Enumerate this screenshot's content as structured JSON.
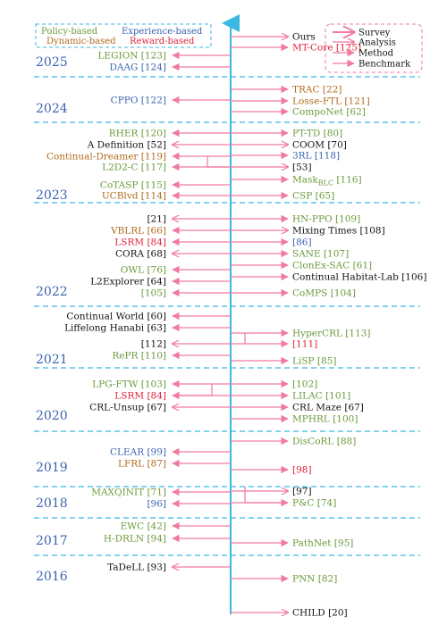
{
  "colors": {
    "policy": "#6b9a3a",
    "experience": "#3b64b0",
    "dynamic": "#b06a1c",
    "reward": "#e0223a",
    "default": "#111111",
    "arrow": "#f07aa0",
    "axis": "#3ab8e0",
    "dashed": "#3ab8e0"
  },
  "legend_categories": {
    "policy": "Policy-based",
    "experience": "Experience-based",
    "dynamic": "Dynamic-based",
    "reward": "Reward-based"
  },
  "legend_types": {
    "survey": "Survey",
    "analysis": "Analysis",
    "method": "Method",
    "benchmark": "Benchmark"
  },
  "years": [
    "2025",
    "2024",
    "2023",
    "2022",
    "2021",
    "2020",
    "2019",
    "2018",
    "2017",
    "2016"
  ],
  "entries": [
    {
      "label": "Ours",
      "cat": "default",
      "side": "right",
      "type": "survey"
    },
    {
      "label": "MT-Core [125]",
      "cat": "reward",
      "side": "right",
      "type": "method"
    },
    {
      "label": "LEGION [123]",
      "cat": "policy",
      "side": "left",
      "type": "method"
    },
    {
      "label": "DAAG [124]",
      "cat": "experience",
      "side": "left",
      "type": "method"
    },
    {
      "label": "TRAC [22]",
      "cat": "dynamic",
      "side": "right",
      "type": "method"
    },
    {
      "label": "CPPO [122]",
      "cat": "experience",
      "side": "left",
      "type": "method"
    },
    {
      "label": "Losse-FTL [121]",
      "cat": "dynamic",
      "side": "right",
      "type": "method"
    },
    {
      "label": "CompoNet [62]",
      "cat": "policy",
      "side": "right",
      "type": "method"
    },
    {
      "label": "RHER [120]",
      "cat": "policy",
      "side": "left",
      "type": "method"
    },
    {
      "label": "PT-TD [80]",
      "cat": "policy",
      "side": "right",
      "type": "method"
    },
    {
      "label": "A Definition [52]",
      "cat": "default",
      "side": "left",
      "type": "analysis"
    },
    {
      "label": "COOM [70]",
      "cat": "default",
      "side": "right",
      "type": "analysis"
    },
    {
      "label": "Continual-Dreamer [119]",
      "cat": "dynamic",
      "side": "left",
      "type": "method"
    },
    {
      "label": "3RL [118]",
      "cat": "experience",
      "side": "right",
      "type": "method"
    },
    {
      "label": "L2D2-C [117]",
      "cat": "policy",
      "side": "left",
      "type": "method"
    },
    {
      "label": "[53]",
      "cat": "default",
      "side": "right",
      "type": "analysis"
    },
    {
      "label": "Mask",
      "sub": "BLC",
      "tail": " [116]",
      "cat": "policy",
      "side": "right",
      "type": "method"
    },
    {
      "label": "CoTASP [115]",
      "cat": "policy",
      "side": "left",
      "type": "method"
    },
    {
      "label": "UCBlvd [114]",
      "cat": "dynamic",
      "side": "left",
      "type": "method"
    },
    {
      "label": "CSP [65]",
      "cat": "policy",
      "side": "right",
      "type": "method"
    },
    {
      "label": "[21]",
      "cat": "default",
      "side": "left",
      "type": "survey"
    },
    {
      "label": "HN-PPO [109]",
      "cat": "policy",
      "side": "right",
      "type": "method"
    },
    {
      "label": "VBLRL [66]",
      "cat": "dynamic",
      "side": "left",
      "type": "method"
    },
    {
      "label": "Mixing Times [108]",
      "cat": "default",
      "side": "right",
      "type": "analysis"
    },
    {
      "label": "LSRM [84]",
      "cat": "reward",
      "side": "left",
      "type": "method"
    },
    {
      "label": "[86]",
      "cat": "experience",
      "side": "right",
      "type": "method"
    },
    {
      "label": "CORA [68]",
      "cat": "default",
      "side": "left",
      "type": "analysis"
    },
    {
      "label": "SANE [107]",
      "cat": "policy",
      "side": "right",
      "type": "method"
    },
    {
      "label": "OWL [76]",
      "cat": "policy",
      "side": "left",
      "type": "method"
    },
    {
      "label": "ClonEx-SAC [61]",
      "cat": "policy",
      "side": "right",
      "type": "method"
    },
    {
      "label": "L2Explorer [64]",
      "cat": "default",
      "side": "left",
      "type": "benchmark"
    },
    {
      "label": "Continual Habitat-Lab [106]",
      "cat": "default",
      "side": "right",
      "type": "benchmark"
    },
    {
      "label": "[105]",
      "cat": "policy",
      "side": "left",
      "type": "method"
    },
    {
      "label": "CoMPS [104]",
      "cat": "policy",
      "side": "right",
      "type": "method"
    },
    {
      "label": "Continual World [60]",
      "cat": "default",
      "side": "left",
      "type": "benchmark"
    },
    {
      "label": "Liffelong Hanabi [63]",
      "cat": "default",
      "side": "left",
      "type": "benchmark"
    },
    {
      "label": "HyperCRL [113]",
      "cat": "policy",
      "side": "right",
      "type": "method"
    },
    {
      "label": "[112]",
      "cat": "default",
      "side": "left",
      "type": "survey"
    },
    {
      "label": "[111]",
      "cat": "reward",
      "side": "right",
      "type": "method"
    },
    {
      "label": "RePR [110]",
      "cat": "policy",
      "side": "left",
      "type": "method"
    },
    {
      "label": "LiSP [85]",
      "cat": "policy",
      "side": "right",
      "type": "method"
    },
    {
      "label": "LPG-FTW [103]",
      "cat": "policy",
      "side": "left",
      "type": "method"
    },
    {
      "label": "[102]",
      "cat": "policy",
      "side": "right",
      "type": "method"
    },
    {
      "label": "LSRM [84]",
      "cat": "reward",
      "side": "left",
      "type": "method"
    },
    {
      "label": "LILAC [101]",
      "cat": "policy",
      "side": "right",
      "type": "method"
    },
    {
      "label": "CRL-Unsup [67]",
      "cat": "default",
      "side": "left",
      "type": "analysis"
    },
    {
      "label": "CRL Maze [67]",
      "cat": "default",
      "side": "right",
      "type": "benchmark"
    },
    {
      "label": "MPHRL [100]",
      "cat": "policy",
      "side": "right",
      "type": "method"
    },
    {
      "label": "DisCoRL [88]",
      "cat": "policy",
      "side": "right",
      "type": "method"
    },
    {
      "label": "CLEAR [99]",
      "cat": "experience",
      "side": "left",
      "type": "method"
    },
    {
      "label": "LFRL [87]",
      "cat": "dynamic",
      "side": "left",
      "type": "method"
    },
    {
      "label": "[98]",
      "cat": "reward",
      "side": "right",
      "type": "method"
    },
    {
      "label": "MAXQINIT [71]",
      "cat": "policy",
      "side": "left",
      "type": "method"
    },
    {
      "label": "[97]",
      "cat": "default",
      "side": "right",
      "type": "analysis"
    },
    {
      "label": "[96]",
      "cat": "experience",
      "side": "left",
      "type": "method"
    },
    {
      "label": "P&C [74]",
      "cat": "policy",
      "side": "right",
      "type": "method"
    },
    {
      "label": "EWC [42]",
      "cat": "policy",
      "side": "left",
      "type": "method"
    },
    {
      "label": "H-DRLN [94]",
      "cat": "policy",
      "side": "left",
      "type": "method"
    },
    {
      "label": "PathNet [95]",
      "cat": "policy",
      "side": "right",
      "type": "method"
    },
    {
      "label": "TaDeLL [93]",
      "cat": "default",
      "side": "left",
      "type": "analysis"
    },
    {
      "label": "PNN [82]",
      "cat": "policy",
      "side": "right",
      "type": "method"
    },
    {
      "label": "CHILD [20]",
      "cat": "default",
      "side": "right",
      "type": "analysis"
    }
  ]
}
